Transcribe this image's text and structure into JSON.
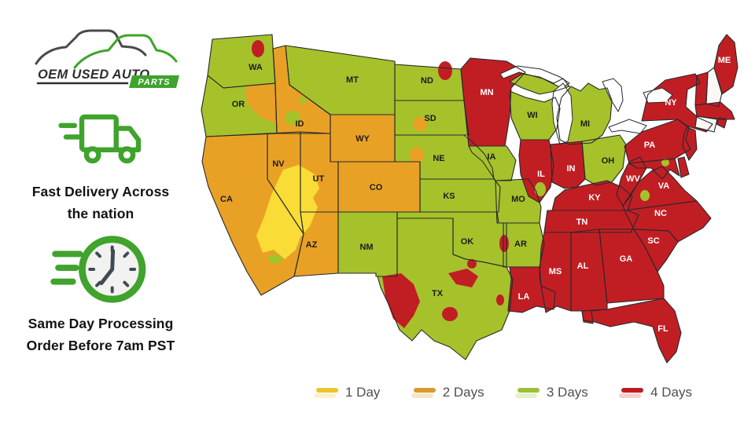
{
  "brand": {
    "line": "OEM USED AUTO",
    "badge": "PARTS"
  },
  "features": [
    {
      "id": "fast-delivery",
      "line1": "Fast Delivery Across",
      "line2": "the nation"
    },
    {
      "id": "same-day",
      "line1": "Same Day Processing",
      "line2": "Order Before 7am PST"
    }
  ],
  "legend": {
    "items": [
      {
        "label": "1 Day",
        "color": "#e9c52f",
        "tint": "#faf0bf"
      },
      {
        "label": "2 Days",
        "color": "#d89a2e",
        "tint": "#f6e2c1"
      },
      {
        "label": "3 Days",
        "color": "#9cbf3b",
        "tint": "#e3edc3"
      },
      {
        "label": "4 Days",
        "color": "#bf1b21",
        "tint": "#f3c8c7"
      }
    ]
  },
  "map": {
    "colors": {
      "1": "#f9dc36",
      "2": "#e9a125",
      "3": "#a5c22b",
      "4": "#c11e24",
      "0": "#faf8f5",
      "border": "#26292b",
      "lake": "#ffffff"
    },
    "days_meaning": {
      "1": "1 Day",
      "2": "2 Days",
      "3": "3 Days",
      "4": "4 Days",
      "0": "uncolored"
    },
    "states": [
      {
        "abbr": "WA",
        "days": 3,
        "label": true
      },
      {
        "abbr": "OR",
        "days": 3,
        "label": true
      },
      {
        "abbr": "CA",
        "days": 2,
        "label": true
      },
      {
        "abbr": "NV",
        "days": 2,
        "label": true
      },
      {
        "abbr": "ID",
        "days": 2,
        "label": true
      },
      {
        "abbr": "MT",
        "days": 3,
        "label": true
      },
      {
        "abbr": "WY",
        "days": 2,
        "label": true
      },
      {
        "abbr": "UT",
        "days": 2,
        "label": true
      },
      {
        "abbr": "CO",
        "days": 2,
        "label": true
      },
      {
        "abbr": "AZ",
        "days": 2,
        "label": true
      },
      {
        "abbr": "NM",
        "days": 3,
        "label": true
      },
      {
        "abbr": "ND",
        "days": 3,
        "label": true
      },
      {
        "abbr": "SD",
        "days": 3,
        "label": true
      },
      {
        "abbr": "NE",
        "days": 3,
        "label": true
      },
      {
        "abbr": "KS",
        "days": 3,
        "label": true
      },
      {
        "abbr": "OK",
        "days": 3,
        "label": true
      },
      {
        "abbr": "TX",
        "days": 3,
        "label": true
      },
      {
        "abbr": "MN",
        "days": 4,
        "label": true
      },
      {
        "abbr": "IA",
        "days": 3,
        "label": true
      },
      {
        "abbr": "MO",
        "days": 3,
        "label": true
      },
      {
        "abbr": "AR",
        "days": 3,
        "label": true
      },
      {
        "abbr": "LA",
        "days": 4,
        "label": true
      },
      {
        "abbr": "WI",
        "days": 3,
        "label": true
      },
      {
        "abbr": "MI",
        "days": 3,
        "label": true
      },
      {
        "abbr": "IL",
        "days": 4,
        "label": true
      },
      {
        "abbr": "IN",
        "days": 4,
        "label": true
      },
      {
        "abbr": "OH",
        "days": 3,
        "label": true
      },
      {
        "abbr": "KY",
        "days": 4,
        "label": true
      },
      {
        "abbr": "TN",
        "days": 4,
        "label": true
      },
      {
        "abbr": "WV",
        "days": 4,
        "label": true
      },
      {
        "abbr": "VA",
        "days": 4,
        "label": true
      },
      {
        "abbr": "NC",
        "days": 4,
        "label": true
      },
      {
        "abbr": "SC",
        "days": 4,
        "label": true
      },
      {
        "abbr": "GA",
        "days": 4,
        "label": true
      },
      {
        "abbr": "AL",
        "days": 4,
        "label": true
      },
      {
        "abbr": "MS",
        "days": 4,
        "label": true
      },
      {
        "abbr": "FL",
        "days": 4,
        "label": true
      },
      {
        "abbr": "PA",
        "days": 4,
        "label": true
      },
      {
        "abbr": "NY",
        "days": 4,
        "label": true
      },
      {
        "abbr": "ME",
        "days": 4,
        "label": true
      },
      {
        "abbr": "VT",
        "days": 4,
        "label": false
      },
      {
        "abbr": "NH",
        "days": 0,
        "label": false
      },
      {
        "abbr": "MA",
        "days": 4,
        "label": false
      },
      {
        "abbr": "RI",
        "days": 4,
        "label": false
      },
      {
        "abbr": "CT",
        "days": 0,
        "label": false
      },
      {
        "abbr": "NJ",
        "days": 4,
        "label": false
      },
      {
        "abbr": "DE",
        "days": 4,
        "label": false
      },
      {
        "abbr": "MD",
        "days": 4,
        "label": false
      }
    ],
    "patches": [
      {
        "id": "wa-region",
        "days": 4
      },
      {
        "id": "or-region",
        "days": 2
      },
      {
        "id": "id-region-1",
        "days": 3
      },
      {
        "id": "id-region-2",
        "days": 3
      },
      {
        "id": "nd-region",
        "days": 4
      },
      {
        "id": "sd-region",
        "days": 2
      },
      {
        "id": "ne-region",
        "days": 2
      },
      {
        "id": "vegas-zone",
        "days": 1
      },
      {
        "id": "az-region",
        "days": 3
      },
      {
        "id": "tx-west",
        "days": 4
      },
      {
        "id": "tx-central-1",
        "days": 4
      },
      {
        "id": "tx-central-2",
        "days": 4
      },
      {
        "id": "tx-central-3",
        "days": 4
      },
      {
        "id": "tx-houston",
        "days": 4
      },
      {
        "id": "ar-region",
        "days": 4
      },
      {
        "id": "il-region",
        "days": 3
      },
      {
        "id": "wv-region",
        "days": 3
      },
      {
        "id": "dc-region",
        "days": 3
      }
    ]
  }
}
